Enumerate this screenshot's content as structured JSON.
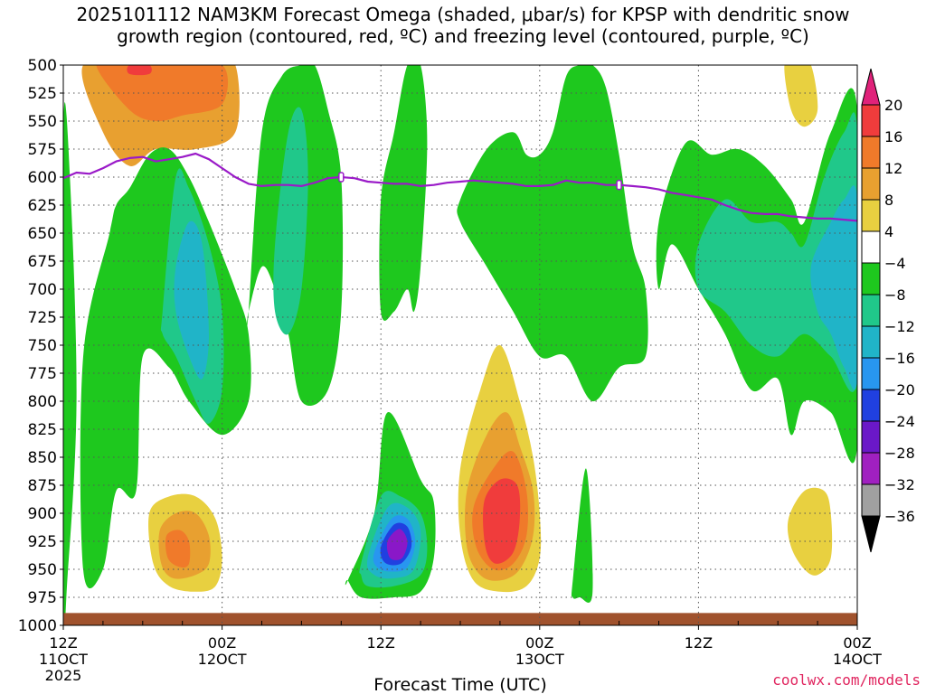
{
  "chart_data": {
    "type": "heatmap",
    "title_line1": "2025101112 NAM3KM Forecast Omega (shaded, μbar/s) for KPSP with dendritic snow",
    "title_line2": "growth region (contoured, red, ºC) and freezing level (contoured, purple, ºC)",
    "xlabel": "Forecast Time (UTC)",
    "ylabel": "",
    "credit": "coolwx.com/models",
    "y_levels": [
      500,
      525,
      550,
      575,
      600,
      625,
      650,
      675,
      700,
      725,
      750,
      775,
      800,
      825,
      850,
      875,
      900,
      925,
      950,
      975,
      1000
    ],
    "y_range": [
      500,
      1000
    ],
    "x_range_hours": [
      0,
      60
    ],
    "x_ticks": [
      {
        "hour": 0,
        "time": "12Z",
        "date": "11OCT",
        "year": "2025"
      },
      {
        "hour": 12,
        "time": "00Z",
        "date": "12OCT",
        "year": ""
      },
      {
        "hour": 24,
        "time": "12Z",
        "date": "",
        "year": ""
      },
      {
        "hour": 36,
        "time": "00Z",
        "date": "13OCT",
        "year": ""
      },
      {
        "hour": 48,
        "time": "12Z",
        "date": "",
        "year": ""
      },
      {
        "hour": 60,
        "time": "00Z",
        "date": "14OCT",
        "year": ""
      }
    ],
    "colorbar": {
      "labels": [
        "20",
        "16",
        "12",
        "8",
        "4",
        "−4",
        "−8",
        "−12",
        "−16",
        "−20",
        "−24",
        "−28",
        "−32",
        "−36"
      ],
      "values": [
        20,
        16,
        12,
        8,
        4,
        -4,
        -8,
        -12,
        -16,
        -20,
        -24,
        -28,
        -32,
        -36
      ],
      "colors": [
        "#e0227a",
        "#f03c3c",
        "#f07a2a",
        "#e8a030",
        "#e8d040",
        "#ffffff",
        "#1ec81e",
        "#20c88a",
        "#20b4c8",
        "#2896f0",
        "#2040e0",
        "#6a18c8",
        "#a020c0",
        "#a0a0a0",
        "#000000"
      ]
    },
    "freezing_level": {
      "color": "#9a1ac8",
      "hours": [
        0,
        1,
        2,
        3,
        4,
        5,
        6,
        7,
        8,
        9,
        10,
        11,
        12,
        13,
        14,
        15,
        16,
        17,
        18,
        19,
        20,
        21,
        22,
        23,
        24,
        25,
        26,
        27,
        28,
        29,
        30,
        31,
        32,
        33,
        34,
        35,
        36,
        37,
        38,
        39,
        40,
        41,
        42,
        43,
        44,
        45,
        46,
        47,
        48,
        49,
        50,
        51,
        52,
        53,
        54,
        55,
        56,
        57,
        58,
        59,
        60
      ],
      "pressure": [
        601,
        596,
        597,
        592,
        586,
        583,
        582,
        586,
        584,
        582,
        579,
        584,
        592,
        600,
        606,
        608,
        607,
        607,
        608,
        605,
        601,
        600,
        601,
        604,
        605,
        606,
        606,
        608,
        607,
        605,
        604,
        603,
        604,
        605,
        606,
        608,
        608,
        607,
        603,
        605,
        605,
        607,
        607,
        608,
        609,
        611,
        614,
        616,
        618,
        620,
        625,
        629,
        632,
        633,
        633,
        635,
        636,
        637,
        637,
        638,
        639
      ]
    },
    "omega_regions": [
      {
        "value": 8,
        "hours": [
          1.5,
          6,
          8,
          11,
          13,
          13,
          10,
          7,
          5,
          3
        ],
        "pressure": [
          500,
          500,
          500,
          500,
          500,
          560,
          575,
          575,
          590,
          560
        ]
      },
      {
        "value": 12,
        "hours": [
          2.5,
          5,
          8,
          12,
          12,
          9,
          7,
          5
        ],
        "pressure": [
          500,
          500,
          500,
          500,
          535,
          545,
          550,
          540
        ]
      },
      {
        "value": 16,
        "hours": [
          5,
          6.5,
          6.5,
          5
        ],
        "pressure": [
          500,
          500,
          508,
          508
        ]
      },
      {
        "value": -8,
        "hours": [
          0,
          0.5,
          1,
          0.3,
          0
        ],
        "pressure": [
          560,
          600,
          800,
          960,
          980
        ]
      },
      {
        "value": -8,
        "hours": [
          1.5,
          3.5,
          4,
          5,
          6.5,
          8,
          9.5,
          11,
          13,
          14,
          14,
          12,
          9.5,
          8,
          6,
          5.5,
          4,
          3,
          1.5
        ],
        "pressure": [
          760,
          650,
          625,
          610,
          580,
          575,
          600,
          640,
          700,
          740,
          800,
          830,
          800,
          770,
          760,
          880,
          880,
          950,
          950
        ]
      },
      {
        "value": -8,
        "hours": [
          14,
          15,
          16.5,
          18,
          19,
          20,
          21,
          21,
          20,
          18,
          17,
          16,
          15,
          14
        ],
        "pressure": [
          720,
          560,
          510,
          500,
          500,
          540,
          600,
          720,
          790,
          800,
          740,
          700,
          680,
          720
        ]
      },
      {
        "value": -8,
        "hours": [
          24,
          25,
          26,
          27,
          27.5,
          27,
          26.5,
          26,
          25,
          24
        ],
        "pressure": [
          620,
          560,
          500,
          500,
          570,
          680,
          720,
          700,
          720,
          720
        ]
      },
      {
        "value": -8,
        "hours": [
          30,
          32,
          34,
          35,
          36,
          37,
          38,
          39,
          40,
          41,
          42,
          43,
          44,
          44,
          42,
          40,
          38,
          36,
          34,
          32,
          30
        ],
        "pressure": [
          620,
          575,
          560,
          580,
          580,
          560,
          510,
          500,
          500,
          520,
          580,
          660,
          700,
          760,
          770,
          800,
          760,
          760,
          720,
          680,
          640
        ]
      },
      {
        "value": -8,
        "hours": [
          45,
          47,
          49,
          51,
          53,
          55,
          56,
          58,
          60,
          60,
          58,
          56,
          55,
          54,
          52,
          50,
          48,
          46,
          45
        ],
        "pressure": [
          640,
          570,
          580,
          575,
          590,
          620,
          640,
          560,
          540,
          840,
          810,
          800,
          830,
          780,
          790,
          740,
          700,
          660,
          700
        ]
      },
      {
        "value": -8,
        "hours": [
          21.5,
          23.5,
          24.5,
          27,
          28,
          28,
          27,
          25,
          22.5,
          21.5
        ],
        "pressure": [
          960,
          900,
          810,
          870,
          890,
          940,
          970,
          975,
          975,
          960
        ]
      },
      {
        "value": -8,
        "hours": [
          38.5,
          39.5,
          40,
          39,
          38.5
        ],
        "pressure": [
          960,
          860,
          970,
          975,
          975
        ]
      },
      {
        "value": -12,
        "hours": [
          7.5,
          8.5,
          9.5,
          11,
          12,
          12,
          11,
          10,
          8.5,
          7.5
        ],
        "pressure": [
          720,
          600,
          610,
          660,
          720,
          790,
          820,
          800,
          760,
          740
        ]
      },
      {
        "value": -12,
        "hours": [
          16,
          17,
          18,
          18.5,
          18,
          17,
          16
        ],
        "pressure": [
          660,
          560,
          540,
          600,
          700,
          740,
          720
        ]
      },
      {
        "value": -12,
        "hours": [
          48,
          50,
          52,
          54,
          55,
          56,
          57.5,
          59,
          60,
          60,
          58,
          56,
          54,
          52,
          50,
          48
        ],
        "pressure": [
          660,
          620,
          640,
          640,
          650,
          660,
          600,
          560,
          560,
          780,
          760,
          740,
          760,
          750,
          720,
          700
        ]
      },
      {
        "value": -12,
        "hours": [
          22.5,
          24,
          25.5,
          27,
          27.5,
          27,
          25,
          23,
          22.5
        ],
        "pressure": [
          945,
          885,
          885,
          900,
          930,
          955,
          965,
          965,
          955
        ]
      },
      {
        "value": -16,
        "hours": [
          8.5,
          9.5,
          10.5,
          11,
          10.5,
          9.5,
          8.5
        ],
        "pressure": [
          680,
          640,
          660,
          740,
          780,
          760,
          720
        ]
      },
      {
        "value": -16,
        "hours": [
          56.5,
          58,
          59,
          60,
          60,
          59,
          58,
          57
        ],
        "pressure": [
          680,
          640,
          620,
          620,
          780,
          770,
          740,
          720
        ]
      },
      {
        "value": -16,
        "hours": [
          23,
          24.5,
          26,
          27,
          26.5,
          25,
          23.5
        ],
        "pressure": [
          940,
          895,
          895,
          915,
          950,
          958,
          955
        ]
      },
      {
        "value": -20,
        "hours": [
          23.5,
          24.8,
          26,
          26.6,
          26,
          24.8,
          23.7
        ],
        "pressure": [
          935,
          905,
          905,
          925,
          948,
          952,
          948
        ]
      },
      {
        "value": -24,
        "hours": [
          24,
          25,
          26,
          26.3,
          25.5,
          24.3
        ],
        "pressure": [
          930,
          910,
          912,
          930,
          945,
          944
        ]
      },
      {
        "value": -28,
        "hours": [
          24.5,
          25.4,
          26,
          25.6,
          24.7
        ],
        "pressure": [
          925,
          914,
          925,
          940,
          940
        ]
      },
      {
        "value": 4,
        "hours": [
          6.5,
          8,
          10,
          11.5,
          12,
          11.5,
          10,
          8,
          6.8
        ],
        "pressure": [
          900,
          885,
          885,
          905,
          940,
          965,
          970,
          965,
          945
        ]
      },
      {
        "value": 8,
        "hours": [
          7.3,
          8.5,
          10,
          11,
          11,
          10,
          8.3,
          7.4
        ],
        "pressure": [
          915,
          900,
          900,
          920,
          945,
          955,
          958,
          945
        ]
      },
      {
        "value": 12,
        "hours": [
          7.8,
          8.8,
          9.5,
          9.5,
          8.8,
          7.9
        ],
        "pressure": [
          920,
          915,
          925,
          945,
          948,
          940
        ]
      },
      {
        "value": 4,
        "hours": [
          30,
          31.5,
          33,
          34.5,
          35.5,
          36,
          36,
          35,
          33,
          31,
          30
        ],
        "pressure": [
          860,
          790,
          750,
          800,
          850,
          900,
          940,
          965,
          970,
          960,
          920
        ]
      },
      {
        "value": 8,
        "hours": [
          30.5,
          32,
          33.5,
          34.5,
          35.5,
          35.5,
          34.5,
          33,
          31.5,
          30.5
        ],
        "pressure": [
          880,
          830,
          810,
          840,
          880,
          920,
          950,
          960,
          955,
          930
        ]
      },
      {
        "value": 12,
        "hours": [
          31,
          32.5,
          34,
          35,
          35,
          34,
          32.5,
          31.2
        ],
        "pressure": [
          895,
          860,
          845,
          880,
          920,
          945,
          950,
          930
        ]
      },
      {
        "value": 16,
        "hours": [
          31.8,
          33,
          34.3,
          34.5,
          34,
          32.7,
          31.9
        ],
        "pressure": [
          890,
          870,
          875,
          905,
          935,
          945,
          930
        ]
      },
      {
        "value": 4,
        "hours": [
          54.8,
          56,
          57.5,
          58,
          58,
          57,
          56,
          55
        ],
        "pressure": [
          905,
          880,
          880,
          900,
          940,
          955,
          950,
          930
        ]
      },
      {
        "value": 4,
        "hours": [
          54.5,
          55.5,
          56.5,
          57,
          56,
          55
        ],
        "pressure": [
          500,
          500,
          500,
          540,
          555,
          540
        ]
      }
    ]
  }
}
